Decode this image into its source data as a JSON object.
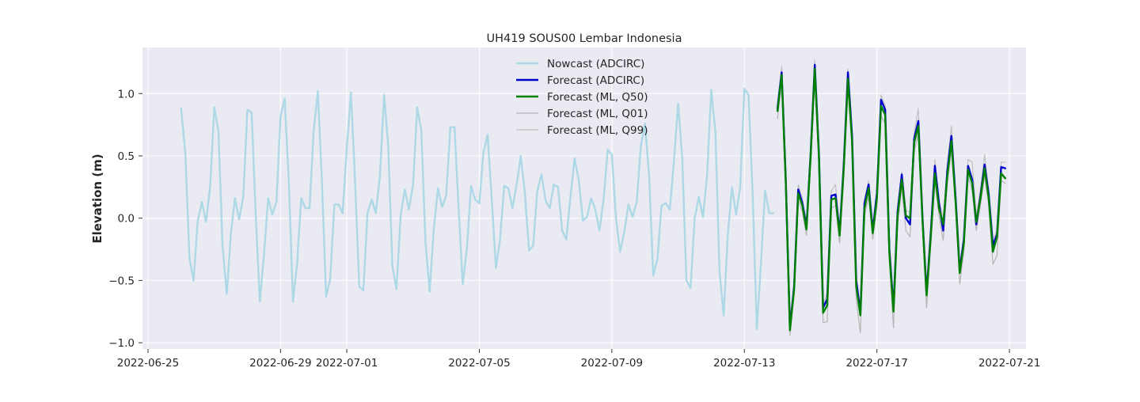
{
  "chart_data": {
    "type": "line",
    "title": "UH419 SOUS00 Lembar Indonesia",
    "xlabel": "",
    "ylabel": "Elevation (m)",
    "x_tick_labels": [
      "2022-06-25",
      "2022-06-29",
      "2022-07-01",
      "2022-07-05",
      "2022-07-09",
      "2022-07-13",
      "2022-07-17",
      "2022-07-21"
    ],
    "x_tick_dates": [
      "2022-06-25",
      "2022-06-29",
      "2022-07-01",
      "2022-07-05",
      "2022-07-09",
      "2022-07-13",
      "2022-07-17",
      "2022-07-21"
    ],
    "y_tick_labels": [
      "−1.0",
      "−0.5",
      "0.0",
      "0.5",
      "1.0"
    ],
    "y_ticks": [
      -1.0,
      -0.5,
      0.0,
      0.5,
      1.0
    ],
    "xlim": [
      "2022-06-24T20:00",
      "2022-07-21T12:00"
    ],
    "ylim": [
      -1.05,
      1.37
    ],
    "grid": true,
    "legend_position": "top-center",
    "background_color": "#eaeaf2",
    "series": [
      {
        "name": "Nowcast (ADCIRC)",
        "color": "#add8e6",
        "width": 2.4,
        "x": [
          "2022-06-26T00:00",
          "2022-06-26T03:00",
          "2022-06-26T06:00",
          "2022-06-26T09:00",
          "2022-06-26T12:00",
          "2022-06-26T15:00",
          "2022-06-26T18:00",
          "2022-06-26T21:00",
          "2022-06-27T00:00",
          "2022-06-27T03:00",
          "2022-06-27T06:00",
          "2022-06-27T09:00",
          "2022-06-27T12:00",
          "2022-06-27T15:00",
          "2022-06-27T18:00",
          "2022-06-27T21:00",
          "2022-06-28T00:00",
          "2022-06-28T03:00",
          "2022-06-28T06:00",
          "2022-06-28T09:00",
          "2022-06-28T12:00",
          "2022-06-28T15:00",
          "2022-06-28T18:00",
          "2022-06-28T21:00",
          "2022-06-29T00:00",
          "2022-06-29T03:00",
          "2022-06-29T06:00",
          "2022-06-29T09:00",
          "2022-06-29T12:00",
          "2022-06-29T15:00",
          "2022-06-29T18:00",
          "2022-06-29T21:00",
          "2022-06-30T00:00",
          "2022-06-30T03:00",
          "2022-06-30T06:00",
          "2022-06-30T09:00",
          "2022-06-30T12:00",
          "2022-06-30T15:00",
          "2022-06-30T18:00",
          "2022-06-30T21:00",
          "2022-07-01T00:00",
          "2022-07-01T03:00",
          "2022-07-01T06:00",
          "2022-07-01T09:00",
          "2022-07-01T12:00",
          "2022-07-01T15:00",
          "2022-07-01T18:00",
          "2022-07-01T21:00",
          "2022-07-02T00:00",
          "2022-07-02T03:00",
          "2022-07-02T06:00",
          "2022-07-02T09:00",
          "2022-07-02T12:00",
          "2022-07-02T15:00",
          "2022-07-02T18:00",
          "2022-07-02T21:00",
          "2022-07-03T00:00",
          "2022-07-03T03:00",
          "2022-07-03T06:00",
          "2022-07-03T09:00",
          "2022-07-03T12:00",
          "2022-07-03T15:00",
          "2022-07-03T18:00",
          "2022-07-03T21:00",
          "2022-07-04T00:00",
          "2022-07-04T03:00",
          "2022-07-04T06:00",
          "2022-07-04T09:00",
          "2022-07-04T12:00",
          "2022-07-04T15:00",
          "2022-07-04T18:00",
          "2022-07-04T21:00",
          "2022-07-05T00:00",
          "2022-07-05T03:00",
          "2022-07-05T06:00",
          "2022-07-05T09:00",
          "2022-07-05T12:00",
          "2022-07-05T15:00",
          "2022-07-05T18:00",
          "2022-07-05T21:00",
          "2022-07-06T00:00",
          "2022-07-06T03:00",
          "2022-07-06T06:00",
          "2022-07-06T09:00",
          "2022-07-06T12:00",
          "2022-07-06T15:00",
          "2022-07-06T18:00",
          "2022-07-06T21:00",
          "2022-07-07T00:00",
          "2022-07-07T03:00",
          "2022-07-07T06:00",
          "2022-07-07T09:00",
          "2022-07-07T12:00",
          "2022-07-07T15:00",
          "2022-07-07T18:00",
          "2022-07-07T21:00",
          "2022-07-08T00:00",
          "2022-07-08T03:00",
          "2022-07-08T06:00",
          "2022-07-08T09:00",
          "2022-07-08T12:00",
          "2022-07-08T15:00",
          "2022-07-08T18:00",
          "2022-07-08T21:00",
          "2022-07-09T00:00",
          "2022-07-09T03:00",
          "2022-07-09T06:00",
          "2022-07-09T09:00",
          "2022-07-09T12:00",
          "2022-07-09T15:00",
          "2022-07-09T18:00",
          "2022-07-09T21:00",
          "2022-07-10T00:00",
          "2022-07-10T03:00",
          "2022-07-10T06:00",
          "2022-07-10T09:00",
          "2022-07-10T12:00",
          "2022-07-10T15:00",
          "2022-07-10T18:00",
          "2022-07-10T21:00",
          "2022-07-11T00:00",
          "2022-07-11T03:00",
          "2022-07-11T06:00",
          "2022-07-11T09:00",
          "2022-07-11T12:00",
          "2022-07-11T15:00",
          "2022-07-11T18:00",
          "2022-07-11T21:00",
          "2022-07-12T00:00",
          "2022-07-12T03:00",
          "2022-07-12T06:00",
          "2022-07-12T09:00",
          "2022-07-12T12:00",
          "2022-07-12T15:00",
          "2022-07-12T18:00",
          "2022-07-12T21:00",
          "2022-07-13T00:00",
          "2022-07-13T03:00",
          "2022-07-13T06:00",
          "2022-07-13T09:00",
          "2022-07-13T12:00",
          "2022-07-13T15:00",
          "2022-07-13T18:00",
          "2022-07-13T21:00"
        ],
        "values": [
          0.88,
          0.52,
          -0.32,
          -0.5,
          -0.02,
          0.13,
          -0.03,
          0.25,
          0.89,
          0.7,
          -0.22,
          -0.61,
          -0.13,
          0.16,
          -0.01,
          0.17,
          0.87,
          0.85,
          0.03,
          -0.67,
          -0.29,
          0.16,
          0.03,
          0.13,
          0.82,
          0.96,
          0.3,
          -0.67,
          -0.36,
          0.16,
          0.08,
          0.08,
          0.7,
          1.02,
          0.29,
          -0.63,
          -0.49,
          0.11,
          0.11,
          0.04,
          0.57,
          1.01,
          0.3,
          -0.55,
          -0.58,
          0.04,
          0.15,
          0.04,
          0.34,
          0.99,
          0.58,
          -0.38,
          -0.57,
          0.02,
          0.23,
          0.07,
          0.27,
          0.89,
          0.7,
          -0.2,
          -0.59,
          -0.09,
          0.24,
          0.09,
          0.18,
          0.73,
          0.73,
          0.08,
          -0.53,
          -0.24,
          0.26,
          0.15,
          0.12,
          0.53,
          0.67,
          0.15,
          -0.4,
          -0.17,
          0.26,
          0.24,
          0.08,
          0.27,
          0.5,
          0.2,
          -0.26,
          -0.22,
          0.22,
          0.35,
          0.14,
          0.08,
          0.27,
          0.25,
          -0.1,
          -0.17,
          0.17,
          0.48,
          0.31,
          -0.02,
          0.01,
          0.16,
          0.07,
          -0.1,
          0.15,
          0.55,
          0.51,
          0.0,
          -0.27,
          -0.11,
          0.11,
          0.01,
          0.13,
          0.58,
          0.76,
          0.33,
          -0.46,
          -0.33,
          0.1,
          0.12,
          0.07,
          0.46,
          0.92,
          0.48,
          -0.5,
          -0.56,
          0.0,
          0.17,
          0.01,
          0.35,
          1.03,
          0.69,
          -0.43,
          -0.78,
          -0.13,
          0.25,
          0.03,
          0.25,
          1.04,
          0.99,
          0.2,
          -0.89,
          -0.36,
          0.22,
          0.04,
          0.04
        ]
      },
      {
        "name": "Forecast (ADCIRC)",
        "color": "#0000cd",
        "width": 2.4,
        "x": [
          "2022-07-14T00:00",
          "2022-07-14T03:00",
          "2022-07-14T06:00",
          "2022-07-14T09:00",
          "2022-07-14T12:00",
          "2022-07-14T15:00",
          "2022-07-14T18:00",
          "2022-07-14T21:00",
          "2022-07-15T00:00",
          "2022-07-15T03:00",
          "2022-07-15T06:00",
          "2022-07-15T09:00",
          "2022-07-15T12:00",
          "2022-07-15T15:00",
          "2022-07-15T18:00",
          "2022-07-15T21:00",
          "2022-07-16T00:00",
          "2022-07-16T03:00",
          "2022-07-16T06:00",
          "2022-07-16T09:00",
          "2022-07-16T12:00",
          "2022-07-16T15:00",
          "2022-07-16T18:00",
          "2022-07-16T21:00",
          "2022-07-17T00:00",
          "2022-07-17T03:00",
          "2022-07-17T06:00",
          "2022-07-17T09:00",
          "2022-07-17T12:00",
          "2022-07-17T15:00",
          "2022-07-17T18:00",
          "2022-07-17T21:00",
          "2022-07-18T00:00",
          "2022-07-18T03:00",
          "2022-07-18T06:00",
          "2022-07-18T09:00",
          "2022-07-18T12:00",
          "2022-07-18T15:00",
          "2022-07-18T18:00",
          "2022-07-18T21:00",
          "2022-07-19T00:00",
          "2022-07-19T03:00",
          "2022-07-19T06:00",
          "2022-07-19T09:00",
          "2022-07-19T12:00",
          "2022-07-19T15:00",
          "2022-07-19T18:00",
          "2022-07-19T21:00",
          "2022-07-20T00:00",
          "2022-07-20T03:00",
          "2022-07-20T06:00",
          "2022-07-20T09:00",
          "2022-07-20T12:00",
          "2022-07-20T15:00",
          "2022-07-20T18:00",
          "2022-07-20T21:00"
        ],
        "values": [
          0.88,
          1.17,
          0.3,
          -0.88,
          -0.55,
          0.23,
          0.12,
          -0.07,
          0.52,
          1.23,
          0.52,
          -0.72,
          -0.65,
          0.18,
          0.19,
          -0.12,
          0.43,
          1.17,
          0.66,
          -0.5,
          -0.76,
          0.12,
          0.27,
          -0.1,
          0.2,
          0.95,
          0.87,
          -0.25,
          -0.72,
          0.05,
          0.35,
          0.0,
          -0.05,
          0.64,
          0.78,
          0.01,
          -0.6,
          -0.12,
          0.42,
          0.12,
          -0.1,
          0.38,
          0.66,
          0.16,
          -0.42,
          -0.17,
          0.42,
          0.31,
          -0.05,
          0.18,
          0.43,
          0.19,
          -0.22,
          -0.13,
          0.41,
          0.4
        ]
      },
      {
        "name": "Forecast (ML, Q50)",
        "color": "#008000",
        "width": 2.4,
        "x": [
          "2022-07-14T00:00",
          "2022-07-14T03:00",
          "2022-07-14T06:00",
          "2022-07-14T09:00",
          "2022-07-14T12:00",
          "2022-07-14T15:00",
          "2022-07-14T18:00",
          "2022-07-14T21:00",
          "2022-07-15T00:00",
          "2022-07-15T03:00",
          "2022-07-15T06:00",
          "2022-07-15T09:00",
          "2022-07-15T12:00",
          "2022-07-15T15:00",
          "2022-07-15T18:00",
          "2022-07-15T21:00",
          "2022-07-16T00:00",
          "2022-07-16T03:00",
          "2022-07-16T06:00",
          "2022-07-16T09:00",
          "2022-07-16T12:00",
          "2022-07-16T15:00",
          "2022-07-16T18:00",
          "2022-07-16T21:00",
          "2022-07-17T00:00",
          "2022-07-17T03:00",
          "2022-07-17T06:00",
          "2022-07-17T09:00",
          "2022-07-17T12:00",
          "2022-07-17T15:00",
          "2022-07-17T18:00",
          "2022-07-17T21:00",
          "2022-07-18T00:00",
          "2022-07-18T03:00",
          "2022-07-18T06:00",
          "2022-07-18T09:00",
          "2022-07-18T12:00",
          "2022-07-18T15:00",
          "2022-07-18T18:00",
          "2022-07-18T21:00",
          "2022-07-19T00:00",
          "2022-07-19T03:00",
          "2022-07-19T06:00",
          "2022-07-19T09:00",
          "2022-07-19T12:00",
          "2022-07-19T15:00",
          "2022-07-19T18:00",
          "2022-07-19T21:00",
          "2022-07-20T00:00",
          "2022-07-20T03:00",
          "2022-07-20T06:00",
          "2022-07-20T09:00",
          "2022-07-20T12:00",
          "2022-07-20T15:00",
          "2022-07-20T18:00",
          "2022-07-20T21:00"
        ],
        "values": [
          0.86,
          1.15,
          0.28,
          -0.9,
          -0.57,
          0.2,
          0.1,
          -0.09,
          0.5,
          1.2,
          0.5,
          -0.76,
          -0.7,
          0.15,
          0.16,
          -0.14,
          0.4,
          1.12,
          0.62,
          -0.55,
          -0.78,
          0.08,
          0.24,
          -0.12,
          0.16,
          0.9,
          0.83,
          -0.28,
          -0.75,
          0.02,
          0.31,
          0.02,
          0.0,
          0.61,
          0.74,
          -0.01,
          -0.62,
          -0.15,
          0.36,
          0.08,
          -0.05,
          0.34,
          0.62,
          0.13,
          -0.44,
          -0.2,
          0.39,
          0.28,
          -0.03,
          0.16,
          0.4,
          0.16,
          -0.27,
          -0.15,
          0.36,
          0.32
        ]
      },
      {
        "name": "Forecast (ML, Q01)",
        "color": "#b5b5b5",
        "width": 1.2,
        "x": [
          "2022-07-14T00:00",
          "2022-07-14T03:00",
          "2022-07-14T06:00",
          "2022-07-14T09:00",
          "2022-07-14T12:00",
          "2022-07-14T15:00",
          "2022-07-14T18:00",
          "2022-07-14T21:00",
          "2022-07-15T00:00",
          "2022-07-15T03:00",
          "2022-07-15T06:00",
          "2022-07-15T09:00",
          "2022-07-15T12:00",
          "2022-07-15T15:00",
          "2022-07-15T18:00",
          "2022-07-15T21:00",
          "2022-07-16T00:00",
          "2022-07-16T03:00",
          "2022-07-16T06:00",
          "2022-07-16T09:00",
          "2022-07-16T12:00",
          "2022-07-16T15:00",
          "2022-07-16T18:00",
          "2022-07-16T21:00",
          "2022-07-17T00:00",
          "2022-07-17T03:00",
          "2022-07-17T06:00",
          "2022-07-17T09:00",
          "2022-07-17T12:00",
          "2022-07-17T15:00",
          "2022-07-17T18:00",
          "2022-07-17T21:00",
          "2022-07-18T00:00",
          "2022-07-18T03:00",
          "2022-07-18T06:00",
          "2022-07-18T09:00",
          "2022-07-18T12:00",
          "2022-07-18T15:00",
          "2022-07-18T18:00",
          "2022-07-18T21:00",
          "2022-07-19T00:00",
          "2022-07-19T03:00",
          "2022-07-19T06:00",
          "2022-07-19T09:00",
          "2022-07-19T12:00",
          "2022-07-19T15:00",
          "2022-07-19T18:00",
          "2022-07-19T21:00",
          "2022-07-20T00:00",
          "2022-07-20T03:00",
          "2022-07-20T06:00",
          "2022-07-20T09:00",
          "2022-07-20T12:00",
          "2022-07-20T15:00",
          "2022-07-20T18:00",
          "2022-07-20T21:00"
        ],
        "values": [
          0.8,
          1.08,
          0.2,
          -0.94,
          -0.62,
          0.15,
          0.05,
          -0.14,
          0.44,
          1.12,
          0.42,
          -0.84,
          -0.83,
          0.08,
          0.1,
          -0.2,
          0.32,
          1.04,
          0.55,
          -0.65,
          -0.92,
          0.02,
          0.17,
          -0.17,
          0.09,
          0.82,
          0.76,
          -0.35,
          -0.88,
          -0.05,
          0.24,
          -0.1,
          -0.15,
          0.54,
          0.68,
          -0.07,
          -0.72,
          -0.22,
          0.29,
          0.02,
          -0.18,
          0.27,
          0.55,
          0.06,
          -0.53,
          -0.27,
          0.33,
          0.22,
          -0.1,
          0.1,
          0.34,
          0.1,
          -0.37,
          -0.3,
          0.3,
          0.28
        ]
      },
      {
        "name": "Forecast (ML, Q99)",
        "color": "#c0c0c0",
        "width": 1.2,
        "x": [
          "2022-07-14T00:00",
          "2022-07-14T03:00",
          "2022-07-14T06:00",
          "2022-07-14T09:00",
          "2022-07-14T12:00",
          "2022-07-14T15:00",
          "2022-07-14T18:00",
          "2022-07-14T21:00",
          "2022-07-15T00:00",
          "2022-07-15T03:00",
          "2022-07-15T06:00",
          "2022-07-15T09:00",
          "2022-07-15T12:00",
          "2022-07-15T15:00",
          "2022-07-15T18:00",
          "2022-07-15T21:00",
          "2022-07-16T00:00",
          "2022-07-16T03:00",
          "2022-07-16T06:00",
          "2022-07-16T09:00",
          "2022-07-16T12:00",
          "2022-07-16T15:00",
          "2022-07-16T18:00",
          "2022-07-16T21:00",
          "2022-07-17T00:00",
          "2022-07-17T03:00",
          "2022-07-17T06:00",
          "2022-07-17T09:00",
          "2022-07-17T12:00",
          "2022-07-17T15:00",
          "2022-07-17T18:00",
          "2022-07-17T21:00",
          "2022-07-18T00:00",
          "2022-07-18T03:00",
          "2022-07-18T06:00",
          "2022-07-18T09:00",
          "2022-07-18T12:00",
          "2022-07-18T15:00",
          "2022-07-18T18:00",
          "2022-07-18T21:00",
          "2022-07-19T00:00",
          "2022-07-19T03:00",
          "2022-07-19T06:00",
          "2022-07-19T09:00",
          "2022-07-19T12:00",
          "2022-07-19T15:00",
          "2022-07-19T18:00",
          "2022-07-19T21:00",
          "2022-07-20T00:00",
          "2022-07-20T03:00",
          "2022-07-20T06:00",
          "2022-07-20T09:00",
          "2022-07-20T12:00",
          "2022-07-20T15:00",
          "2022-07-20T18:00",
          "2022-07-20T21:00"
        ],
        "values": [
          0.92,
          1.22,
          0.36,
          -0.86,
          -0.52,
          0.27,
          0.16,
          -0.04,
          0.56,
          1.27,
          0.56,
          -0.7,
          -0.6,
          0.22,
          0.27,
          -0.08,
          0.47,
          1.2,
          0.7,
          -0.46,
          -0.73,
          0.15,
          0.3,
          -0.06,
          0.24,
          0.99,
          0.9,
          -0.21,
          -0.68,
          0.09,
          0.37,
          0.06,
          0.05,
          0.69,
          0.88,
          0.06,
          -0.56,
          -0.08,
          0.47,
          0.15,
          -0.02,
          0.43,
          0.74,
          0.2,
          -0.38,
          -0.14,
          0.47,
          0.45,
          0.02,
          0.23,
          0.51,
          0.22,
          -0.18,
          -0.1,
          0.45,
          0.45
        ]
      }
    ]
  }
}
